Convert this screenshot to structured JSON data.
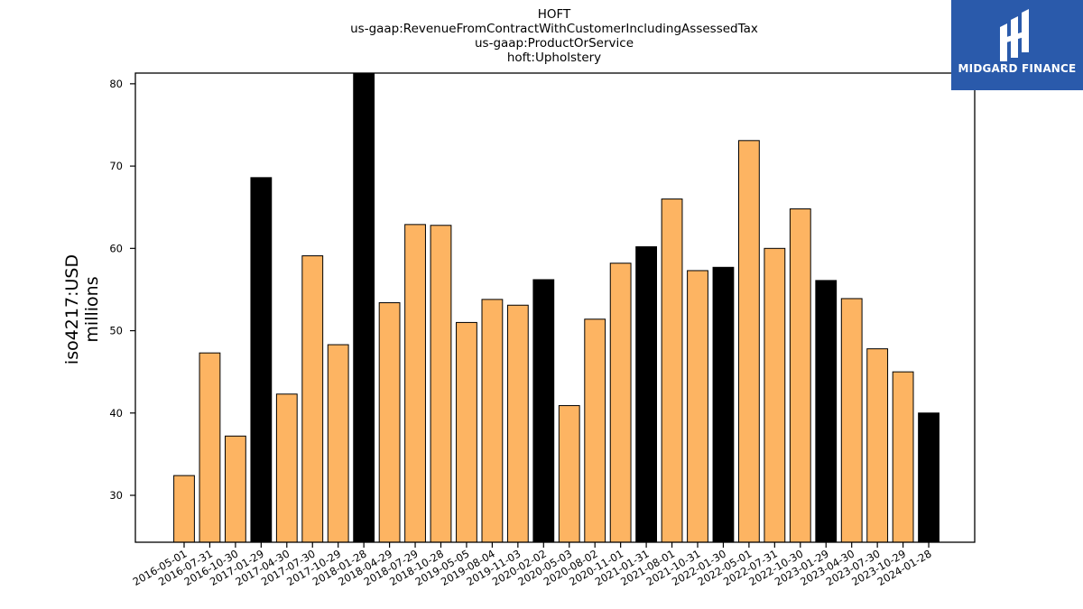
{
  "brand": {
    "name": "MIDGARD FINANCE",
    "color": "#2a5aab"
  },
  "chart_data": {
    "type": "bar",
    "title_lines": [
      "HOFT",
      "us-gaap:RevenueFromContractWithCustomerIncludingAssessedTax",
      "us-gaap:ProductOrService",
      "hoft:Upholstery"
    ],
    "ylabel_lines": [
      "iso4217:USD",
      "millions"
    ],
    "xlabel": "",
    "ylim": [
      24.3,
      81.3
    ],
    "yticks": [
      30,
      40,
      50,
      60,
      70,
      80
    ],
    "grid": false,
    "colors": {
      "quarter": "#fdb462",
      "annual": "#000000",
      "edge": "#000000"
    },
    "categories": [
      "2016-05-01",
      "2016-07-31",
      "2016-10-30",
      "2017-01-29",
      "2017-04-30",
      "2017-07-30",
      "2017-10-29",
      "2018-01-28",
      "2018-04-29",
      "2018-07-29",
      "2018-10-28",
      "2019-05-05",
      "2019-08-04",
      "2019-11-03",
      "2020-02-02",
      "2020-05-03",
      "2020-08-02",
      "2020-11-01",
      "2021-01-31",
      "2021-08-01",
      "2021-10-31",
      "2022-01-30",
      "2022-05-01",
      "2022-07-31",
      "2022-10-30",
      "2023-01-29",
      "2023-04-30",
      "2023-07-30",
      "2023-10-29",
      "2024-01-28"
    ],
    "values": [
      32.4,
      47.3,
      37.2,
      68.6,
      42.3,
      59.1,
      48.3,
      81.3,
      53.4,
      62.9,
      62.8,
      51.0,
      53.8,
      53.1,
      56.2,
      40.9,
      51.4,
      58.2,
      60.2,
      66.0,
      57.3,
      57.7,
      73.1,
      60.0,
      64.8,
      56.1,
      53.9,
      47.8,
      45.0,
      40.0
    ],
    "annual": [
      false,
      false,
      false,
      true,
      false,
      false,
      false,
      true,
      false,
      false,
      false,
      false,
      false,
      false,
      true,
      false,
      false,
      false,
      true,
      false,
      false,
      true,
      false,
      false,
      false,
      true,
      false,
      false,
      false,
      true
    ]
  }
}
